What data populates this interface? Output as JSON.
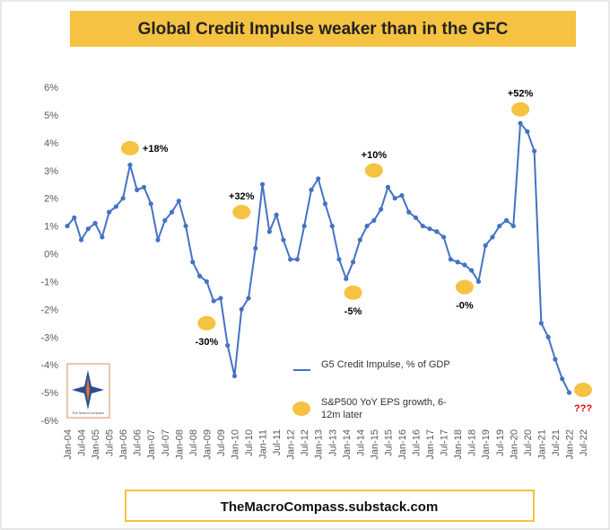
{
  "chart_data": {
    "type": "line",
    "title": "Global Credit Impulse weaker than in the GFC",
    "footer": "TheMacroCompass.substack.com",
    "logo_text": "The MacroCompass",
    "categories": [
      "Jan-04",
      null,
      "Jul-04",
      null,
      "Jan-05",
      null,
      "Jul-05",
      null,
      "Jan-06",
      null,
      "Jul-06",
      null,
      "Jan-07",
      null,
      "Jul-07",
      null,
      "Jan-08",
      null,
      "Jul-08",
      null,
      "Jan-09",
      null,
      "Jul-09",
      null,
      "Jan-10",
      null,
      "Jul-10",
      null,
      "Jan-11",
      null,
      "Jul-11",
      null,
      "Jan-12",
      null,
      "Jul-12",
      null,
      "Jan-13",
      null,
      "Jul-13",
      null,
      "Jan-14",
      null,
      "Jul-14",
      null,
      "Jan-15",
      null,
      "Jul-15",
      null,
      "Jan-16",
      null,
      "Jul-16",
      null,
      "Jan-17",
      null,
      "Jul-17",
      null,
      "Jan-18",
      null,
      "Jul-18",
      null,
      "Jan-19",
      null,
      "Jul-19",
      null,
      "Jan-20",
      null,
      "Jul-20",
      null,
      "Jan-21",
      null,
      "Jul-21",
      null,
      "Jan-22",
      null,
      "Jul-22"
    ],
    "series": [
      {
        "name": "G5 Credit Impulse, % of GDP",
        "color": "#4472c4",
        "values": [
          1.0,
          1.3,
          0.5,
          0.9,
          1.1,
          0.6,
          1.5,
          1.7,
          2.0,
          3.2,
          2.3,
          2.4,
          1.8,
          0.5,
          1.2,
          1.5,
          1.9,
          1.0,
          -0.3,
          -0.8,
          -1.0,
          -1.7,
          -1.6,
          -3.3,
          -4.4,
          -2.0,
          -1.6,
          0.2,
          2.5,
          0.8,
          1.4,
          0.5,
          -0.2,
          -0.2,
          1.0,
          2.3,
          2.7,
          1.8,
          1.0,
          -0.2,
          -0.9,
          -0.3,
          0.5,
          1.0,
          1.2,
          1.6,
          2.4,
          2.0,
          2.1,
          1.5,
          1.3,
          1.0,
          0.9,
          0.8,
          0.6,
          -0.2,
          -0.3,
          -0.4,
          -0.6,
          -1.0,
          0.3,
          0.6,
          1.0,
          1.2,
          1.0,
          4.7,
          4.4,
          3.7,
          -2.5,
          -3.0,
          -3.8,
          -4.5,
          -5.0,
          null,
          null
        ]
      }
    ],
    "annotation_legend": "S&P500 YoY EPS growth, 6-12m later",
    "annotation_color": "#f5c242",
    "annotations": [
      {
        "text": "+18%",
        "x": 9,
        "y": 3.8,
        "position": "right",
        "color": "#000000"
      },
      {
        "text": "-30%",
        "x": 20,
        "y": -2.5,
        "position": "below",
        "color": "#000000"
      },
      {
        "text": "+32%",
        "x": 25,
        "y": 1.5,
        "position": "above",
        "color": "#000000"
      },
      {
        "text": "-5%",
        "x": 41,
        "y": -1.4,
        "position": "below",
        "color": "#000000"
      },
      {
        "text": "+10%",
        "x": 44,
        "y": 3.0,
        "position": "above",
        "color": "#000000"
      },
      {
        "text": "-0%",
        "x": 57,
        "y": -1.2,
        "position": "below",
        "color": "#000000"
      },
      {
        "text": "+52%",
        "x": 65,
        "y": 5.2,
        "position": "above",
        "color": "#000000"
      },
      {
        "text": "???",
        "x": 74,
        "y": -4.9,
        "position": "below",
        "color": "#e00000"
      }
    ],
    "ylim": [
      -6,
      6
    ],
    "yticks": [
      {
        "value": 6,
        "label": "6%"
      },
      {
        "value": 5,
        "label": "5%"
      },
      {
        "value": 4,
        "label": "4%"
      },
      {
        "value": 3,
        "label": "3%"
      },
      {
        "value": 2,
        "label": "2%"
      },
      {
        "value": 1,
        "label": "1%"
      },
      {
        "value": 0,
        "label": "0%"
      },
      {
        "value": -1,
        "label": "-1%"
      },
      {
        "value": -2,
        "label": "-2%"
      },
      {
        "value": -3,
        "label": "-3%"
      },
      {
        "value": -4,
        "label": "-4%"
      },
      {
        "value": -5,
        "label": "-5%"
      },
      {
        "value": -6,
        "label": "-6%"
      }
    ],
    "grid": false
  }
}
